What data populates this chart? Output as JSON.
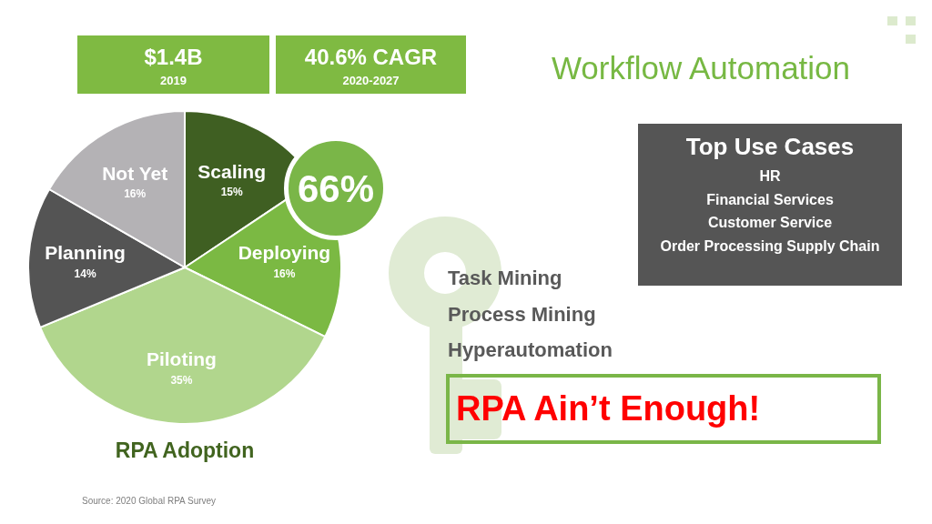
{
  "chart_data": {
    "type": "pie",
    "title": "Workflow Automation",
    "subtitle": "RPA Adoption",
    "categories": [
      "Scaling",
      "Deploying",
      "Piloting",
      "Planning",
      "Not Yet"
    ],
    "values": [
      15,
      16,
      35,
      14,
      16
    ],
    "value_labels": [
      "15%",
      "16%",
      "35%",
      "14%",
      "16%"
    ],
    "colors": [
      "#3f5f22",
      "#7bb943",
      "#b1d68d",
      "#545454",
      "#b4b2b5"
    ],
    "annotations": [
      "$1.4B",
      "2019",
      "40.6% CAGR",
      "2020-2027",
      "66%",
      "Top Use Cases",
      "HR",
      "Financial Services",
      "Customer Service",
      "Order Processing Supply Chain",
      "Task Mining",
      "Process Mining",
      "Hyperautomation",
      "RPA Ain’t Enough!",
      "Source: 2020 Global RPA Survey"
    ]
  }
}
